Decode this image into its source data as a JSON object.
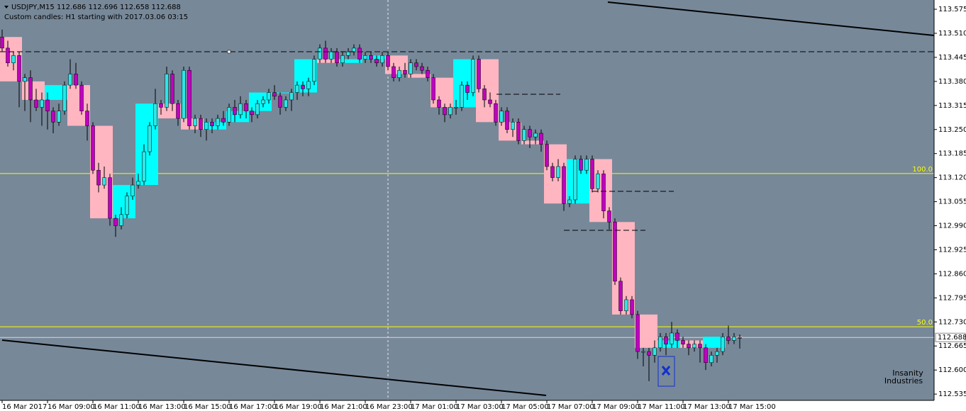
{
  "chart_data": {
    "type": "candlestick",
    "header": "USDJPY,M15  112.686 112.696 112.658 112.688",
    "subtitle": "Custom candles: H1 starting with 2017.03.06 03:15",
    "logo": [
      "Insanity",
      "Industries"
    ],
    "background": "#778899",
    "colors": {
      "bull": "#2de6e6",
      "bear": "#c000c0",
      "bull_box": "#00ffff",
      "bear_box": "#ffb6c1",
      "wick": "#000000",
      "level": "#ffff00",
      "price_line": "#d8d8d8"
    },
    "ylim": [
      112.518,
      113.6
    ],
    "yticks": [
      113.575,
      {
        "value": 113.51,
        "label": "113.510"
      },
      113.445,
      {
        "value": 113.38,
        "label": "113.380"
      },
      113.315,
      {
        "value": 113.25,
        "label": "113.250"
      },
      113.185,
      {
        "value": 113.12,
        "label": "113.120"
      },
      113.055,
      {
        "value": 112.99,
        "label": "112.990"
      },
      112.925,
      {
        "value": 112.86,
        "label": "112.860"
      },
      112.795,
      {
        "value": 112.73,
        "label": "112.730"
      },
      112.665,
      {
        "value": 112.6,
        "label": "112.600"
      },
      112.535
    ],
    "levels": [
      {
        "value": 113.131,
        "label": "100.0"
      },
      {
        "value": 112.717,
        "label": "50.0"
      }
    ],
    "last_price": 112.688,
    "categories": [
      "16 Mar 2017",
      null,
      null,
      null,
      null,
      null,
      null,
      null,
      "16 Mar 09:00",
      null,
      null,
      null,
      null,
      null,
      null,
      null,
      "16 Mar 11:00",
      null,
      null,
      null,
      null,
      null,
      null,
      null,
      "16 Mar 13:00",
      null,
      null,
      null,
      null,
      null,
      null,
      null,
      "16 Mar 15:00",
      null,
      null,
      null,
      null,
      null,
      null,
      null,
      "16 Mar 17:00",
      null,
      null,
      null,
      null,
      null,
      null,
      null,
      "16 Mar 19:00",
      null,
      null,
      null,
      null,
      null,
      null,
      null,
      "16 Mar 21:00",
      null,
      null,
      null,
      null,
      null,
      null,
      null,
      "16 Mar 23:00",
      null,
      null,
      null,
      null,
      null,
      null,
      null,
      "17 Mar 01:00",
      null,
      null,
      null,
      null,
      null,
      null,
      null,
      "17 Mar 03:00",
      null,
      null,
      null,
      null,
      null,
      null,
      null,
      "17 Mar 05:00",
      null,
      null,
      null,
      null,
      null,
      null,
      null,
      "17 Mar 07:00",
      null,
      null,
      null,
      null,
      null,
      null,
      null,
      "17 Mar 09:00",
      null,
      null,
      null,
      null,
      null,
      null,
      null,
      "17 Mar 11:00",
      null,
      null,
      null,
      null,
      null,
      null,
      null,
      "17 Mar 13:00",
      null,
      null,
      null,
      null,
      null,
      null,
      null,
      "17 Mar 15:00",
      null,
      null
    ],
    "candles": [
      [
        113.5,
        113.52,
        113.46,
        113.47
      ],
      [
        113.47,
        113.49,
        113.42,
        113.43
      ],
      [
        113.43,
        113.46,
        113.41,
        113.45
      ],
      [
        113.45,
        113.46,
        113.31,
        113.38
      ],
      [
        113.38,
        113.4,
        113.3,
        113.39
      ],
      [
        113.39,
        113.41,
        113.27,
        113.33
      ],
      [
        113.33,
        113.36,
        113.3,
        113.31
      ],
      [
        113.31,
        113.35,
        113.26,
        113.33
      ],
      [
        113.33,
        113.35,
        113.25,
        113.3
      ],
      [
        113.3,
        113.31,
        113.24,
        113.27
      ],
      [
        113.27,
        113.32,
        113.26,
        113.3
      ],
      [
        113.3,
        113.38,
        113.29,
        113.37
      ],
      [
        113.37,
        113.44,
        113.36,
        113.4
      ],
      [
        113.4,
        113.43,
        113.36,
        113.37
      ],
      [
        113.37,
        113.38,
        113.29,
        113.3
      ],
      [
        113.3,
        113.32,
        113.22,
        113.26
      ],
      [
        113.26,
        113.27,
        113.13,
        113.14
      ],
      [
        113.14,
        113.16,
        113.08,
        113.1
      ],
      [
        113.1,
        113.15,
        113.09,
        113.12
      ],
      [
        113.12,
        113.13,
        112.99,
        113.01
      ],
      [
        113.01,
        113.02,
        112.96,
        112.99
      ],
      [
        112.99,
        113.04,
        112.98,
        113.02
      ],
      [
        113.02,
        113.08,
        113.01,
        113.07
      ],
      [
        113.07,
        113.12,
        113.06,
        113.1
      ],
      [
        113.1,
        113.13,
        113.09,
        113.11
      ],
      [
        113.11,
        113.21,
        113.1,
        113.19
      ],
      [
        113.19,
        113.27,
        113.18,
        113.26
      ],
      [
        113.26,
        113.36,
        113.25,
        113.32
      ],
      [
        113.32,
        113.33,
        113.29,
        113.31
      ],
      [
        113.31,
        113.42,
        113.3,
        113.4
      ],
      [
        113.4,
        113.41,
        113.3,
        113.32
      ],
      [
        113.32,
        113.33,
        113.26,
        113.28
      ],
      [
        113.28,
        113.42,
        113.27,
        113.41
      ],
      [
        113.41,
        113.42,
        113.25,
        113.26
      ],
      [
        113.26,
        113.29,
        113.24,
        113.28
      ],
      [
        113.28,
        113.29,
        113.23,
        113.25
      ],
      [
        113.25,
        113.28,
        113.22,
        113.27
      ],
      [
        113.27,
        113.28,
        113.24,
        113.26
      ],
      [
        113.26,
        113.29,
        113.25,
        113.28
      ],
      [
        113.28,
        113.3,
        113.26,
        113.27
      ],
      [
        113.27,
        113.32,
        113.26,
        113.31
      ],
      [
        113.31,
        113.33,
        113.27,
        113.29
      ],
      [
        113.29,
        113.34,
        113.28,
        113.32
      ],
      [
        113.32,
        113.33,
        113.28,
        113.3
      ],
      [
        113.3,
        113.31,
        113.27,
        113.29
      ],
      [
        113.29,
        113.33,
        113.28,
        113.32
      ],
      [
        113.32,
        113.34,
        113.31,
        113.33
      ],
      [
        113.33,
        113.36,
        113.32,
        113.35
      ],
      [
        113.35,
        113.37,
        113.33,
        113.34
      ],
      [
        113.34,
        113.35,
        113.29,
        113.31
      ],
      [
        113.31,
        113.34,
        113.3,
        113.33
      ],
      [
        113.33,
        113.36,
        113.3,
        113.35
      ],
      [
        113.35,
        113.38,
        113.33,
        113.37
      ],
      [
        113.37,
        113.38,
        113.34,
        113.36
      ],
      [
        113.36,
        113.39,
        113.34,
        113.38
      ],
      [
        113.38,
        113.45,
        113.37,
        113.44
      ],
      [
        113.44,
        113.48,
        113.43,
        113.47
      ],
      [
        113.47,
        113.49,
        113.43,
        113.44
      ],
      [
        113.44,
        113.47,
        113.43,
        113.46
      ],
      [
        113.46,
        113.47,
        113.42,
        113.43
      ],
      [
        113.43,
        113.46,
        113.42,
        113.45
      ],
      [
        113.45,
        113.47,
        113.44,
        113.46
      ],
      [
        113.46,
        113.48,
        113.45,
        113.47
      ],
      [
        113.47,
        113.48,
        113.43,
        113.44
      ],
      [
        113.44,
        113.46,
        113.43,
        113.45
      ],
      [
        113.45,
        113.46,
        113.43,
        113.44
      ],
      [
        113.44,
        113.45,
        113.42,
        113.43
      ],
      [
        113.43,
        113.46,
        113.42,
        113.45
      ],
      [
        113.45,
        113.46,
        113.41,
        113.42
      ],
      [
        113.42,
        113.43,
        113.38,
        113.39
      ],
      [
        113.39,
        113.42,
        113.38,
        113.41
      ],
      [
        113.41,
        113.43,
        113.39,
        113.4
      ],
      [
        113.4,
        113.44,
        113.39,
        113.43
      ],
      [
        113.43,
        113.44,
        113.41,
        113.42
      ],
      [
        113.42,
        113.43,
        113.4,
        113.41
      ],
      [
        113.41,
        113.42,
        113.38,
        113.39
      ],
      [
        113.39,
        113.4,
        113.32,
        113.33
      ],
      [
        113.33,
        113.34,
        113.29,
        113.31
      ],
      [
        113.31,
        113.32,
        113.27,
        113.29
      ],
      [
        113.29,
        113.32,
        113.28,
        113.31
      ],
      [
        113.31,
        113.33,
        113.29,
        113.31
      ],
      [
        113.31,
        113.38,
        113.3,
        113.37
      ],
      [
        113.37,
        113.38,
        113.33,
        113.35
      ],
      [
        113.35,
        113.45,
        113.34,
        113.44
      ],
      [
        113.44,
        113.45,
        113.35,
        113.36
      ],
      [
        113.36,
        113.37,
        113.31,
        113.33
      ],
      [
        113.33,
        113.35,
        113.31,
        113.32
      ],
      [
        113.32,
        113.33,
        113.26,
        113.27
      ],
      [
        113.27,
        113.31,
        113.26,
        113.3
      ],
      [
        113.3,
        113.31,
        113.24,
        113.25
      ],
      [
        113.25,
        113.28,
        113.23,
        113.27
      ],
      [
        113.27,
        113.28,
        113.21,
        113.22
      ],
      [
        113.22,
        113.26,
        113.21,
        113.25
      ],
      [
        113.25,
        113.26,
        113.2,
        113.23
      ],
      [
        113.23,
        113.25,
        113.21,
        113.24
      ],
      [
        113.24,
        113.25,
        113.19,
        113.21
      ],
      [
        113.21,
        113.22,
        113.14,
        113.15
      ],
      [
        113.15,
        113.16,
        113.11,
        113.12
      ],
      [
        113.12,
        113.17,
        113.11,
        113.15
      ],
      [
        113.15,
        113.16,
        113.03,
        113.05
      ],
      [
        113.05,
        113.07,
        113.04,
        113.06
      ],
      [
        113.06,
        113.18,
        113.05,
        113.17
      ],
      [
        113.17,
        113.18,
        113.13,
        113.14
      ],
      [
        113.14,
        113.18,
        113.13,
        113.17
      ],
      [
        113.17,
        113.18,
        113.08,
        113.09
      ],
      [
        113.09,
        113.14,
        113.08,
        113.13
      ],
      [
        113.13,
        113.14,
        113.01,
        113.03
      ],
      [
        113.03,
        113.04,
        112.98,
        113.0
      ],
      [
        113.0,
        113.01,
        112.83,
        112.84
      ],
      [
        112.84,
        112.85,
        112.75,
        112.76
      ],
      [
        112.76,
        112.8,
        112.75,
        112.79
      ],
      [
        112.79,
        112.8,
        112.74,
        112.75
      ],
      [
        112.75,
        112.76,
        112.63,
        112.65
      ],
      [
        112.65,
        112.66,
        112.61,
        112.65
      ],
      [
        112.65,
        112.66,
        112.57,
        112.64
      ],
      [
        112.64,
        112.68,
        112.62,
        112.66
      ],
      [
        112.66,
        112.7,
        112.65,
        112.69
      ],
      [
        112.69,
        112.7,
        112.64,
        112.67
      ],
      [
        112.67,
        112.73,
        112.66,
        112.7
      ],
      [
        112.7,
        112.71,
        112.66,
        112.68
      ],
      [
        112.68,
        112.69,
        112.66,
        112.67
      ],
      [
        112.67,
        112.68,
        112.64,
        112.66
      ],
      [
        112.66,
        112.68,
        112.65,
        112.67
      ],
      [
        112.67,
        112.68,
        112.62,
        112.66
      ],
      [
        112.66,
        112.67,
        112.6,
        112.62
      ],
      [
        112.62,
        112.65,
        112.61,
        112.64
      ],
      [
        112.64,
        112.66,
        112.62,
        112.65
      ],
      [
        112.65,
        112.7,
        112.64,
        112.69
      ],
      [
        112.69,
        112.72,
        112.67,
        112.68
      ],
      [
        112.68,
        112.7,
        112.67,
        112.69
      ],
      [
        112.686,
        112.696,
        112.658,
        112.688
      ]
    ]
  }
}
